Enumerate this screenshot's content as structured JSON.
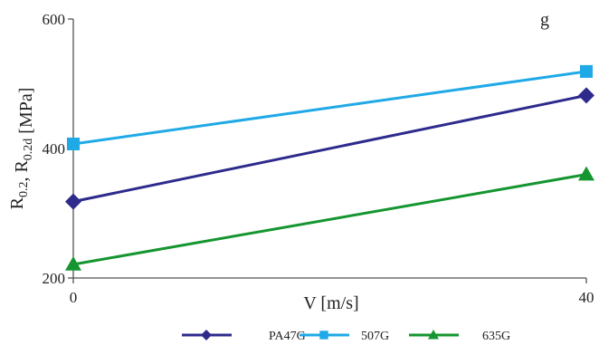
{
  "title_fragment": "g",
  "chart_data": {
    "type": "line",
    "x": [
      0,
      40
    ],
    "xlabel": "V [m/s]",
    "ylabel": "R0.2, R0.2d [MPa]",
    "ylabel_parts": [
      {
        "text": "R",
        "sub": "0.2"
      },
      {
        "text": ", R",
        "sub": "0.2d"
      },
      {
        "text": " [MPa]",
        "sub": ""
      }
    ],
    "xticks": [
      "0",
      "40"
    ],
    "yticks": [
      "200",
      "400",
      "600"
    ],
    "xlim": [
      0,
      40
    ],
    "ylim": [
      200,
      600
    ],
    "grid": false,
    "legend_position": "bottom",
    "series": [
      {
        "name": "PA47G",
        "values": [
          318,
          482
        ],
        "color": "#2e2a8c",
        "marker": "diamond"
      },
      {
        "name": "507G",
        "values": [
          407,
          519
        ],
        "color": "#1fa9e6",
        "marker": "square"
      },
      {
        "name": "635G",
        "values": [
          221,
          360
        ],
        "color": "#14952f",
        "marker": "triangle"
      }
    ]
  }
}
